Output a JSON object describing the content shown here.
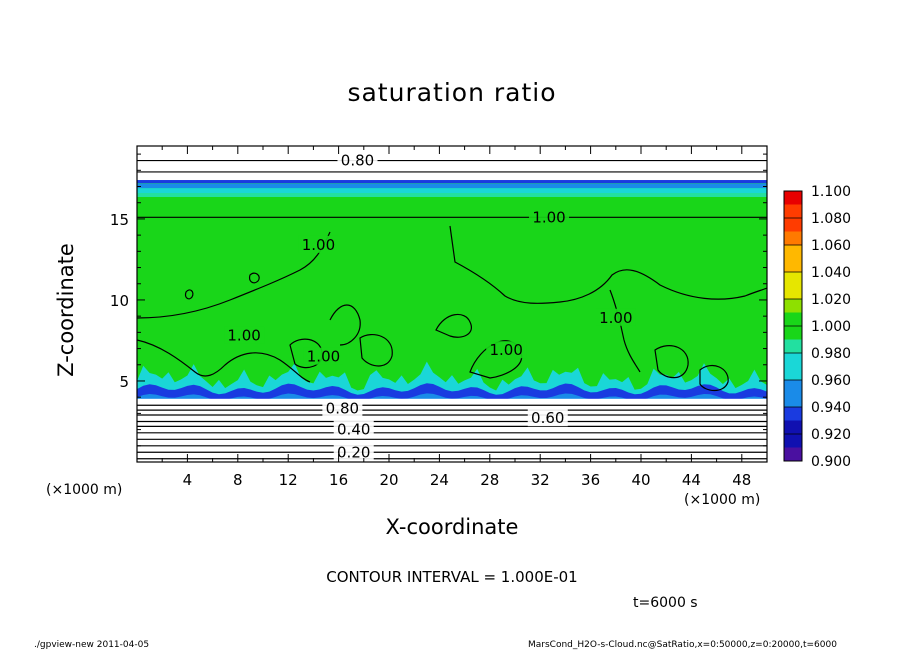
{
  "title": "saturation ratio",
  "xlabel": "X-coordinate",
  "ylabel": "Z-coordinate",
  "x_unit_left": "(×1000 m)",
  "x_unit_right": "(×1000 m)",
  "contour_interval": "CONTOUR INTERVAL = 1.000E-01",
  "time_label": "t=6000 s",
  "footer_left": "./gpview-new   2011-04-05",
  "footer_right": "MarsCond_H2O-s-Cloud.nc@SatRatio,x=0:50000,z=0:20000,t=6000",
  "colors": {
    "frame": "#000000",
    "saturated_fill": "#19d619",
    "ice_band": "#1a3be0"
  },
  "chart_data": {
    "type": "heatmap",
    "title": "saturation ratio",
    "xlabel": "X-coordinate",
    "ylabel": "Z-coordinate",
    "xlim": [
      0,
      50
    ],
    "ylim": [
      0,
      19.5
    ],
    "x_ticks": [
      4,
      8,
      12,
      16,
      20,
      24,
      28,
      32,
      36,
      40,
      44,
      48
    ],
    "y_ticks": [
      5,
      10,
      15
    ],
    "contour_labels": [
      {
        "text": "0.80",
        "x": 17.5,
        "z": 18.6
      },
      {
        "text": "1.00",
        "x": 32.7,
        "z": 15.1
      },
      {
        "text": "1.00",
        "x": 14.4,
        "z": 13.4
      },
      {
        "text": "1.00",
        "x": 8.5,
        "z": 7.8
      },
      {
        "text": "1.00",
        "x": 14.8,
        "z": 6.5
      },
      {
        "text": "1.00",
        "x": 29.3,
        "z": 6.9
      },
      {
        "text": "1.00",
        "x": 38.0,
        "z": 8.9
      },
      {
        "text": "0.80",
        "x": 16.3,
        "z": 3.3
      },
      {
        "text": "0.60",
        "x": 32.6,
        "z": 2.7
      },
      {
        "text": "0.40",
        "x": 17.2,
        "z": 2.0
      },
      {
        "text": "0.20",
        "x": 17.2,
        "z": 0.6
      }
    ],
    "colorbar": {
      "min": 0.9,
      "max": 1.1,
      "ticks": [
        "1.100",
        "1.080",
        "1.060",
        "1.040",
        "1.020",
        "1.000",
        "0.980",
        "0.960",
        "0.940",
        "0.920",
        "0.900"
      ],
      "colors": [
        "#e80000",
        "#ff3c00",
        "#ff7a00",
        "#ffb800",
        "#e6e600",
        "#8ee000",
        "#19d619",
        "#22e0a0",
        "#1ad7d7",
        "#1a8be8",
        "#1a3be0",
        "#1010b0",
        "#4a10a0"
      ]
    }
  }
}
